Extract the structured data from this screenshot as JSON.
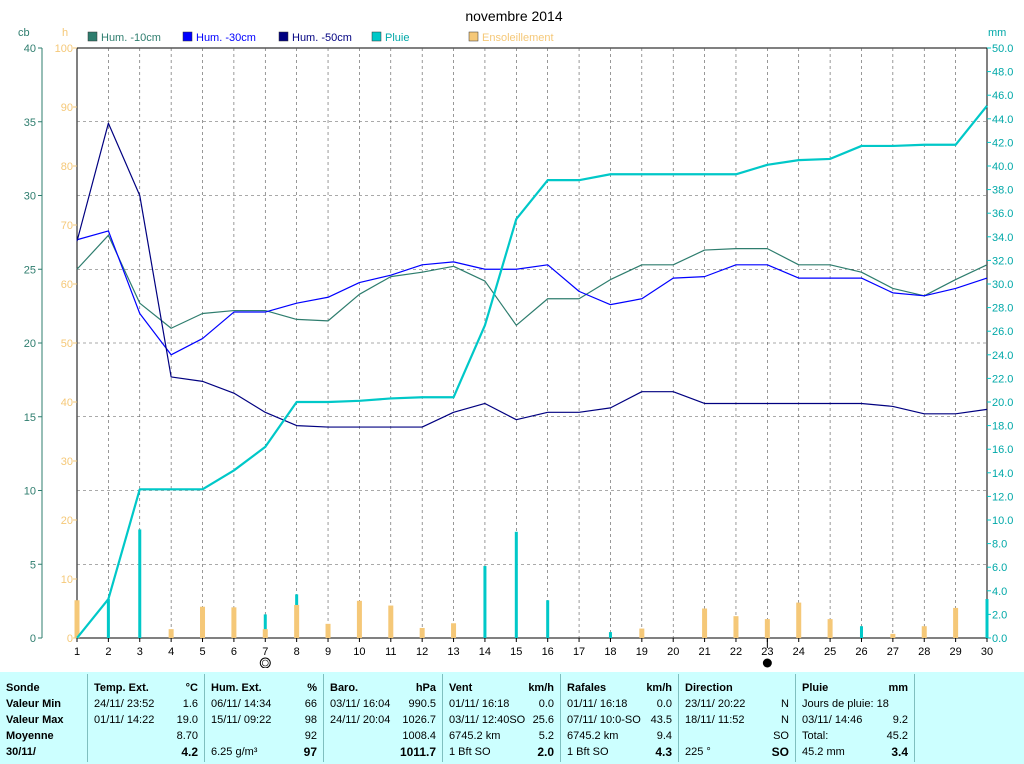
{
  "chart_data": {
    "type": "line",
    "title": "novembre 2014",
    "x": [
      1,
      2,
      3,
      4,
      5,
      6,
      7,
      8,
      9,
      10,
      11,
      12,
      13,
      14,
      15,
      16,
      17,
      18,
      19,
      20,
      21,
      22,
      23,
      24,
      25,
      26,
      27,
      28,
      29,
      30
    ],
    "x_ticks": [
      "1",
      "2",
      "3",
      "4",
      "5",
      "6",
      "7",
      "8",
      "9",
      "10",
      "11",
      "12",
      "13",
      "14",
      "15",
      "16",
      "17",
      "18",
      "19",
      "20",
      "21",
      "22",
      "23",
      "24",
      "25",
      "26",
      "27",
      "28",
      "29",
      "30"
    ],
    "left_axis_cb": {
      "label": "cb",
      "range": [
        0,
        40
      ],
      "ticks": [
        "0",
        "5",
        "10",
        "15",
        "20",
        "25",
        "30",
        "35",
        "40"
      ]
    },
    "left_axis_h": {
      "label": "h",
      "range": [
        0,
        100
      ],
      "ticks": [
        "0",
        "10",
        "20",
        "30",
        "40",
        "50",
        "60",
        "70",
        "80",
        "90",
        "100"
      ]
    },
    "right_axis_mm": {
      "label": "mm",
      "range": [
        0,
        50
      ],
      "ticks": [
        "0.0",
        "2.0",
        "4.0",
        "6.0",
        "8.0",
        "10.0",
        "12.0",
        "14.0",
        "16.0",
        "18.0",
        "20.0",
        "22.0",
        "24.0",
        "26.0",
        "28.0",
        "30.0",
        "32.0",
        "34.0",
        "36.0",
        "38.0",
        "40.0",
        "42.0",
        "44.0",
        "46.0",
        "48.0",
        "50.0"
      ]
    },
    "grid": true,
    "legend_position": "top",
    "series": [
      {
        "name": "Hum. -10cm",
        "axis": "cb",
        "color": "#2e7d6e",
        "type": "line",
        "values": [
          25.0,
          27.3,
          22.7,
          21.0,
          22.0,
          22.2,
          22.2,
          21.6,
          21.5,
          23.3,
          24.5,
          24.8,
          25.2,
          24.2,
          21.2,
          23.0,
          23.0,
          24.3,
          25.3,
          25.3,
          26.3,
          26.4,
          26.4,
          25.3,
          25.3,
          24.8,
          23.7,
          23.2,
          24.3,
          25.3
        ]
      },
      {
        "name": "Hum. -30cm",
        "axis": "cb",
        "color": "#0000ff",
        "type": "line",
        "values": [
          27.0,
          27.6,
          22.0,
          19.2,
          20.3,
          22.1,
          22.1,
          22.7,
          23.1,
          24.1,
          24.6,
          25.3,
          25.5,
          25.0,
          25.0,
          25.3,
          23.5,
          22.6,
          23.0,
          24.4,
          24.5,
          25.3,
          25.3,
          24.4,
          24.4,
          24.4,
          23.4,
          23.2,
          23.7,
          24.4
        ]
      },
      {
        "name": "Hum. -50cm",
        "axis": "cb",
        "color": "#000080",
        "type": "line",
        "values": [
          26.9,
          34.9,
          30.0,
          17.7,
          17.4,
          16.6,
          15.3,
          14.4,
          14.3,
          14.3,
          14.3,
          14.3,
          15.3,
          15.9,
          14.8,
          15.3,
          15.3,
          15.6,
          16.7,
          16.7,
          15.9,
          15.9,
          15.9,
          15.9,
          15.9,
          15.9,
          15.7,
          15.2,
          15.2,
          15.5
        ]
      },
      {
        "name": "Pluie",
        "axis": "mm",
        "color": "#00c8c8",
        "type": "line",
        "note_values": "cumulative",
        "values": [
          0.0,
          3.3,
          12.6,
          12.6,
          12.6,
          14.2,
          16.2,
          20.0,
          20.0,
          20.1,
          20.3,
          20.4,
          20.4,
          26.5,
          35.5,
          38.8,
          38.8,
          39.3,
          39.3,
          39.3,
          39.3,
          39.3,
          40.1,
          40.5,
          40.6,
          41.7,
          41.7,
          41.8,
          41.8,
          45.1
        ]
      },
      {
        "name": "Pluie",
        "axis": "mm",
        "color": "#00c8c8",
        "type": "bar",
        "note_values": "daily",
        "values": [
          0.0,
          3.3,
          9.2,
          0.0,
          0.0,
          1.6,
          2.0,
          3.7,
          0.0,
          0.1,
          0.2,
          0.1,
          0.0,
          6.1,
          9.0,
          3.2,
          0.0,
          0.5,
          0.0,
          0.0,
          0.0,
          0.0,
          0.8,
          0.4,
          0.1,
          1.0,
          0.0,
          0.1,
          0.0,
          3.3
        ]
      },
      {
        "name": "Ensoleillement",
        "axis": "h",
        "color": "#f5c878",
        "type": "bar",
        "values": [
          6.4,
          0.0,
          0.0,
          1.5,
          5.3,
          5.2,
          1.5,
          5.6,
          2.4,
          6.3,
          5.5,
          1.7,
          2.5,
          0.0,
          0.0,
          0.0,
          0.0,
          0.0,
          1.6,
          0.0,
          5.0,
          3.7,
          3.2,
          6.0,
          3.2,
          0.0,
          0.7,
          2.0,
          5.1,
          0.0
        ]
      }
    ],
    "annotations": {
      "new_moon_day": 23,
      "full_moon_day": 7
    }
  },
  "table": {
    "sonde": {
      "header": "Sonde",
      "rows": [
        "Valeur Min",
        "Valeur Max",
        "Moyenne",
        "30/11/"
      ]
    },
    "temp": {
      "header": "Temp. Ext.",
      "unit": "°C",
      "min": {
        "date": "24/11/  23:52",
        "val": "1.6"
      },
      "max": {
        "date": "01/11/  14:22",
        "val": "19.0"
      },
      "avg": "8.70",
      "current": "4.2"
    },
    "hum": {
      "header": "Hum. Ext.",
      "unit": "%",
      "min": {
        "date": "06/11/  14:34",
        "val": "66"
      },
      "max": {
        "date": "15/11/  09:22",
        "val": "98"
      },
      "avg": "92",
      "abs": "6.25 g/m³",
      "current": "97"
    },
    "baro": {
      "header": "Baro.",
      "unit": "hPa",
      "min": {
        "date": "03/11/  16:04",
        "val": "990.5"
      },
      "max": {
        "date": "24/11/  20:04",
        "val": "1026.7"
      },
      "avg": "1008.4",
      "current": "1011.7"
    },
    "vent": {
      "header": "Vent",
      "unit": "km/h",
      "min": {
        "date": "01/11/  16:18",
        "val": "0.0"
      },
      "max": {
        "date": "03/11/  12:40SO",
        "val": "25.6"
      },
      "avg_label": "6745.2 km",
      "avg": "5.2",
      "cur_label": "1 Bft SO",
      "current": "2.0"
    },
    "rafales": {
      "header": "Rafales",
      "unit": "km/h",
      "min": {
        "date": "01/11/  16:18",
        "val": "0.0"
      },
      "max": {
        "date": "07/11/  10:0-SO",
        "val": "43.5"
      },
      "avg_label": "6745.2 km",
      "avg": "9.4",
      "cur_label": "1 Bft SO",
      "current": "4.3"
    },
    "direction": {
      "header": "Direction",
      "min": {
        "date": "23/11/  20:22",
        "val": "N"
      },
      "max": {
        "date": "18/11/  11:52",
        "val": "N"
      },
      "avg": "SO",
      "cur_label": "225 °",
      "current": "SO"
    },
    "pluie": {
      "header": "Pluie",
      "unit": "mm",
      "jours": "Jours de pluie: 18",
      "max": {
        "date": "03/11/  14:46",
        "val": "9.2"
      },
      "total_label": "Total:",
      "total": "45.2",
      "cur_label": "45.2 mm",
      "current": "3.4"
    }
  }
}
